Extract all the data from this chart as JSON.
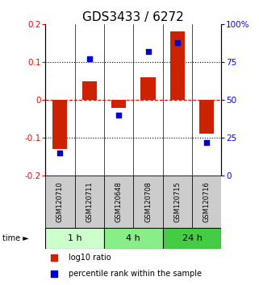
{
  "title": "GDS3433 / 6272",
  "samples": [
    "GSM120710",
    "GSM120711",
    "GSM120648",
    "GSM120708",
    "GSM120715",
    "GSM120716"
  ],
  "log10_ratio": [
    -0.13,
    0.05,
    -0.02,
    0.06,
    0.18,
    -0.09
  ],
  "percentile_rank": [
    15,
    77,
    40,
    82,
    88,
    22
  ],
  "ylim_left": [
    -0.2,
    0.2
  ],
  "ylim_right": [
    0,
    100
  ],
  "yticks_left": [
    -0.2,
    -0.1,
    0,
    0.1,
    0.2
  ],
  "yticks_right": [
    0,
    25,
    50,
    75,
    100
  ],
  "ytick_labels_left": [
    "-0.2",
    "-0.1",
    "0",
    "0.1",
    "0.2"
  ],
  "ytick_labels_right": [
    "0",
    "25",
    "50",
    "75",
    "100%"
  ],
  "hlines_dotted": [
    -0.1,
    0.1
  ],
  "hline_dashed": 0,
  "bar_color": "#CC2200",
  "square_color": "#0000CC",
  "bar_width": 0.5,
  "square_size": 25,
  "time_groups": [
    {
      "label": "1 h",
      "samples": [
        0,
        1
      ],
      "color": "#CCFFCC"
    },
    {
      "label": "4 h",
      "samples": [
        2,
        3
      ],
      "color": "#88EE88"
    },
    {
      "label": "24 h",
      "samples": [
        4,
        5
      ],
      "color": "#44CC44"
    }
  ],
  "legend_log10": "log10 ratio",
  "legend_pct": "percentile rank within the sample",
  "title_fontsize": 11,
  "tick_fontsize": 7.5,
  "legend_fontsize": 7,
  "sample_fontsize": 6,
  "time_fontsize": 8,
  "bg_color": "#FFFFFF",
  "sample_box_color": "#CCCCCC",
  "sample_box_edge": "#222222"
}
